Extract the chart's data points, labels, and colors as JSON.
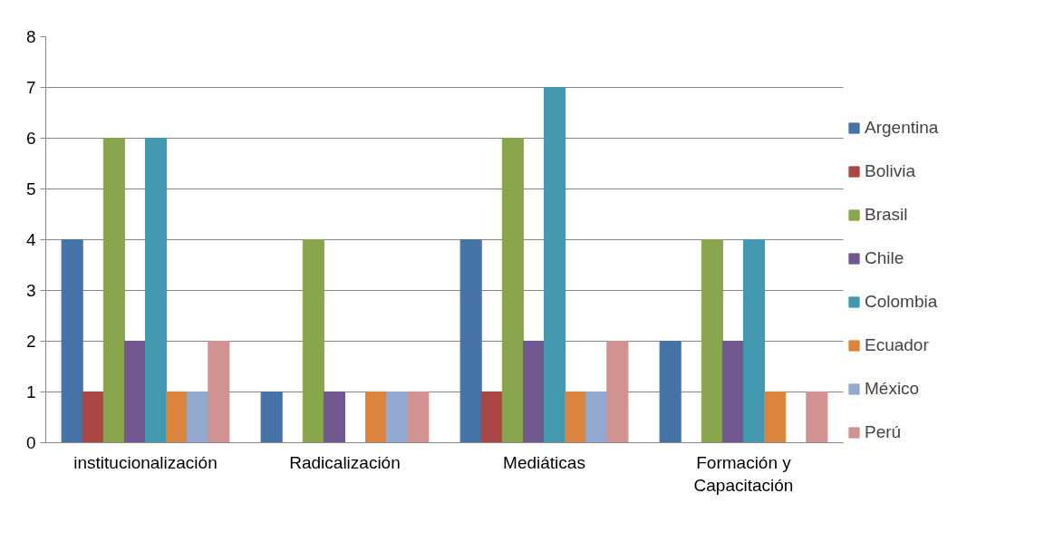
{
  "chart_data": {
    "type": "bar",
    "categories": [
      "institucionalización",
      "Radicalización",
      "Mediáticas",
      "Formación y Capacitación"
    ],
    "series": [
      {
        "name": "Argentina",
        "color": "#4572a7",
        "values": [
          4,
          1,
          4,
          2
        ]
      },
      {
        "name": "Bolivia",
        "color": "#aa4643",
        "values": [
          1,
          0,
          1,
          0
        ]
      },
      {
        "name": "Brasil",
        "color": "#89a54e",
        "values": [
          6,
          4,
          6,
          4
        ]
      },
      {
        "name": "Chile",
        "color": "#71588f",
        "values": [
          2,
          1,
          2,
          2
        ]
      },
      {
        "name": "Colombia",
        "color": "#4198af",
        "values": [
          6,
          0,
          7,
          4
        ]
      },
      {
        "name": "Ecuador",
        "color": "#db843d",
        "values": [
          1,
          1,
          1,
          1
        ]
      },
      {
        "name": "México",
        "color": "#93a9cf",
        "values": [
          1,
          1,
          1,
          0
        ]
      },
      {
        "name": "Perú",
        "color": "#d19392",
        "values": [
          2,
          1,
          2,
          1
        ]
      }
    ],
    "ylim": [
      0,
      8
    ],
    "yticks": [
      0,
      1,
      2,
      3,
      4,
      5,
      6,
      7,
      8
    ],
    "grid": "y",
    "legend": "right"
  }
}
